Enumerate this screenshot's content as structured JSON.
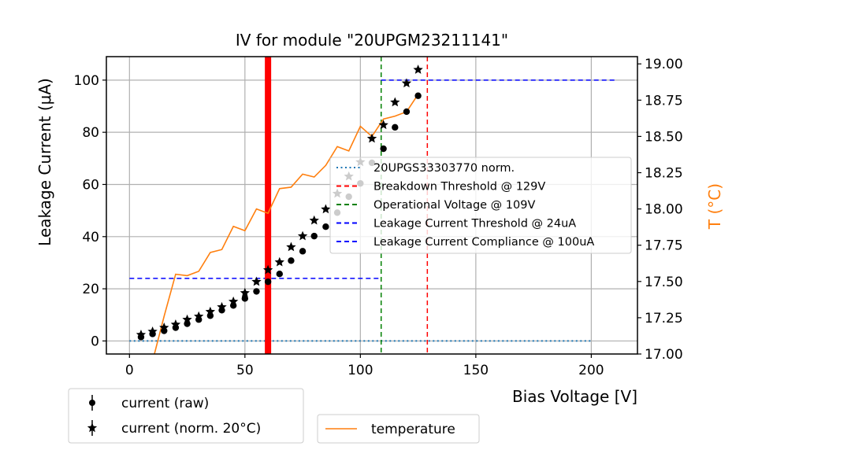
{
  "chart_data": {
    "type": "scatter",
    "title": "IV for module \"20UPGM23211141\"",
    "xlabel": "Bias Voltage [V]",
    "ylabel": "Leakage Current (μA)",
    "y2label": "T (°C)",
    "xlim": [
      -10,
      220
    ],
    "ylim": [
      -5,
      109
    ],
    "y2lim": [
      17.0,
      19.05
    ],
    "xticks": [
      0,
      50,
      100,
      150,
      200
    ],
    "yticks": [
      0,
      20,
      40,
      60,
      80,
      100
    ],
    "y2ticks": [
      "17.00",
      "17.25",
      "17.50",
      "17.75",
      "18.00",
      "18.25",
      "18.50",
      "18.75",
      "19.00"
    ],
    "grid": true,
    "x": [
      5,
      10,
      15,
      20,
      25,
      30,
      35,
      40,
      45,
      50,
      55,
      60,
      65,
      70,
      75,
      80,
      85,
      90,
      95,
      100,
      105,
      110,
      115,
      120,
      125
    ],
    "series": [
      {
        "name": "current (raw)",
        "marker": "circle",
        "color": "#000000",
        "values": [
          1.5,
          2.7,
          3.9,
          5.1,
          6.6,
          8.2,
          9.7,
          11.8,
          13.6,
          16.3,
          19.0,
          22.7,
          25.7,
          30.8,
          34.4,
          40.2,
          43.8,
          49.2,
          55.3,
          60.4,
          68.3,
          73.7,
          81.9,
          87.9,
          94.0
        ]
      },
      {
        "name": "current (norm. 20°C)",
        "marker": "star",
        "color": "#000000",
        "values": [
          2.4,
          3.6,
          5.1,
          6.3,
          8.2,
          9.4,
          11.2,
          13.0,
          15.1,
          18.4,
          22.7,
          27.2,
          30.2,
          36.0,
          40.2,
          46.2,
          50.5,
          56.5,
          63.1,
          68.6,
          77.6,
          82.8,
          91.5,
          98.8,
          104.0
        ]
      },
      {
        "name": "temperature",
        "axis": "right",
        "type": "line",
        "color": "#ff7f0e",
        "values": [
          16.75,
          16.95,
          17.26,
          17.55,
          17.54,
          17.57,
          17.7,
          17.72,
          17.88,
          17.85,
          18.0,
          17.97,
          18.14,
          18.15,
          18.24,
          18.22,
          18.3,
          18.43,
          18.4,
          18.57,
          18.5,
          18.62,
          18.64,
          18.67,
          18.79
        ]
      },
      {
        "name": "20UPGS33303770 norm.",
        "type": "hline",
        "style": "dotted",
        "color": "#1f77b4",
        "y": 0,
        "x_range": [
          0,
          200
        ]
      }
    ],
    "annotations": [
      {
        "type": "vline",
        "label": "Breakdown Threshold @ 129V",
        "x": 129,
        "color": "#ff0000",
        "style": "dashed"
      },
      {
        "type": "vline",
        "label": "Operational Voltage @ 109V",
        "x": 109,
        "color": "#008000",
        "style": "dashed"
      },
      {
        "type": "hline",
        "label": "Leakage Current Threshold @ 24uA",
        "y": 24,
        "x_range": [
          0,
          109
        ],
        "color": "#0000ff",
        "style": "dashed"
      },
      {
        "type": "hline",
        "label": "Leakage Current Compliance @ 100uA",
        "y": 100,
        "x_range": [
          109,
          210
        ],
        "color": "#0000ff",
        "style": "dashed"
      },
      {
        "type": "vband",
        "x": 60,
        "color": "#ff0000",
        "note": "thick red vertical marker"
      }
    ],
    "legends": {
      "inner": {
        "placement": "center-right",
        "entries": [
          {
            "label": "20UPGS33303770 norm.",
            "color": "#1f77b4",
            "style": "dotted"
          },
          {
            "label": "Breakdown Threshold @ 129V",
            "color": "#ff0000",
            "style": "dashed"
          },
          {
            "label": "Operational Voltage @ 109V",
            "color": "#008000",
            "style": "dashed"
          },
          {
            "label": "Leakage Current Threshold @ 24uA",
            "color": "#0000ff",
            "style": "dashed"
          },
          {
            "label": "Leakage Current Compliance @ 100uA",
            "color": "#0000ff",
            "style": "dashed"
          }
        ]
      },
      "bottom_left": {
        "placement": "below-left",
        "entries": [
          {
            "label": "current (raw)",
            "marker": "circle"
          },
          {
            "label": "current (norm. 20°C)",
            "marker": "star"
          }
        ]
      },
      "bottom_center": {
        "placement": "below-center",
        "entries": [
          {
            "label": "temperature",
            "color": "#ff7f0e",
            "style": "solid"
          }
        ]
      }
    }
  }
}
